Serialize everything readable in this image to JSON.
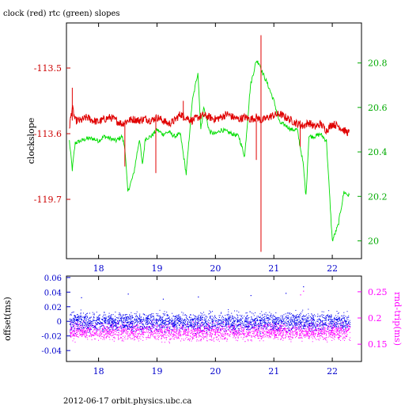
{
  "page_title": "clock (red) rtc (green) slopes",
  "footer": "2012-06-17  orbit.physics.ubc.ca",
  "colors": {
    "red": "#e00000",
    "green": "#00dd00",
    "blue": "#0000ee",
    "magenta": "#ff00ff",
    "axis": "#000000"
  },
  "chart_data": [
    {
      "type": "line",
      "title": "clock (red) rtc (green) slopes",
      "xlabel": "",
      "ylabel": "clockslope",
      "y2label": "",
      "xlim": [
        17.45,
        22.5
      ],
      "ylim": [
        -119.79,
        -113.41
      ],
      "y2lim": [
        19.92,
        20.98
      ],
      "x_ticks": [
        18,
        19,
        20,
        21,
        22
      ],
      "y_ticks": [
        -113.5,
        -113.6,
        -119.7
      ],
      "y2_ticks": [
        20,
        20.2,
        20.4,
        20.6,
        20.8
      ],
      "series": [
        {
          "name": "clock (red)",
          "axis": "left",
          "color": "#e00000",
          "x": [
            17.5,
            17.55,
            17.6,
            17.7,
            17.8,
            17.9,
            18.0,
            18.1,
            18.2,
            18.3,
            18.4,
            18.5,
            18.6,
            18.7,
            18.8,
            18.9,
            19.0,
            19.1,
            19.2,
            19.3,
            19.4,
            19.5,
            19.6,
            19.7,
            19.8,
            19.9,
            20.0,
            20.1,
            20.2,
            20.3,
            20.4,
            20.5,
            20.6,
            20.7,
            20.8,
            20.9,
            21.0,
            21.1,
            21.2,
            21.3,
            21.4,
            21.5,
            21.6,
            21.7,
            21.8,
            21.9,
            22.0,
            22.1,
            22.2,
            22.3
          ],
          "y": [
            -113.59,
            -113.56,
            -113.58,
            -113.58,
            -113.575,
            -113.58,
            -113.582,
            -113.578,
            -113.575,
            -113.58,
            -113.585,
            -113.58,
            -113.578,
            -113.58,
            -113.577,
            -113.58,
            -113.575,
            -113.58,
            -113.585,
            -113.58,
            -113.57,
            -113.575,
            -113.58,
            -113.575,
            -113.572,
            -113.575,
            -113.578,
            -113.575,
            -113.57,
            -113.575,
            -113.578,
            -113.575,
            -113.578,
            -113.575,
            -113.58,
            -113.575,
            -113.572,
            -113.57,
            -113.575,
            -113.58,
            -113.585,
            -113.588,
            -113.583,
            -113.59,
            -113.585,
            -113.595,
            -113.585,
            -113.588,
            -113.595,
            -113.6
          ]
        },
        {
          "name": "rtc (green)",
          "axis": "right",
          "color": "#00dd00",
          "x": [
            17.5,
            17.55,
            17.6,
            17.7,
            17.8,
            17.9,
            18.0,
            18.1,
            18.2,
            18.3,
            18.4,
            18.45,
            18.5,
            18.6,
            18.7,
            18.75,
            18.8,
            18.9,
            19.0,
            19.1,
            19.2,
            19.3,
            19.4,
            19.5,
            19.55,
            19.6,
            19.7,
            19.75,
            19.8,
            19.9,
            20.0,
            20.1,
            20.2,
            20.3,
            20.4,
            20.5,
            20.6,
            20.7,
            20.75,
            20.8,
            20.9,
            21.0,
            21.1,
            21.2,
            21.3,
            21.4,
            21.5,
            21.55,
            21.6,
            21.7,
            21.8,
            21.9,
            22.0,
            22.1,
            22.2,
            22.3
          ],
          "y": [
            20.45,
            20.32,
            20.44,
            20.45,
            20.46,
            20.46,
            20.45,
            20.47,
            20.46,
            20.45,
            20.47,
            20.42,
            20.22,
            20.3,
            20.46,
            20.34,
            20.46,
            20.47,
            20.5,
            20.48,
            20.49,
            20.47,
            20.48,
            20.3,
            20.46,
            20.62,
            20.76,
            20.5,
            20.6,
            20.49,
            20.48,
            20.5,
            20.49,
            20.48,
            20.47,
            20.38,
            20.7,
            20.81,
            20.8,
            20.76,
            20.7,
            20.63,
            20.53,
            20.52,
            20.5,
            20.5,
            20.35,
            20.2,
            20.47,
            20.47,
            20.48,
            20.45,
            20.0,
            20.07,
            20.22,
            20.2
          ]
        }
      ]
    },
    {
      "type": "scatter",
      "title": "",
      "xlabel": "",
      "ylabel": "offset(ms)",
      "y2label": "rnd-trip(ms)",
      "xlim": [
        17.45,
        22.5
      ],
      "ylim": [
        -0.055,
        0.062
      ],
      "y2lim": [
        0.117,
        0.28
      ],
      "x_ticks": [
        18,
        19,
        20,
        21,
        22
      ],
      "y_ticks": [
        0.06,
        0.04,
        0.02,
        0,
        -0.02,
        -0.04
      ],
      "y2_ticks": [
        0.25,
        0.2,
        0.15
      ],
      "series": [
        {
          "name": "offset",
          "axis": "left",
          "color": "#0000ee",
          "x_range": [
            17.5,
            22.3
          ],
          "band_center": 0.0,
          "band_half_width": 0.012,
          "outliers": [
            [
              17.7,
              0.033
            ],
            [
              18.5,
              0.038
            ],
            [
              19.1,
              0.031
            ],
            [
              19.7,
              0.034
            ],
            [
              20.6,
              0.036
            ],
            [
              21.2,
              0.039
            ],
            [
              21.5,
              0.048
            ]
          ]
        },
        {
          "name": "rnd-trip",
          "axis": "right",
          "color": "#ff00ff",
          "x_range": [
            17.5,
            22.3
          ],
          "band_center": 0.175,
          "band_half_width": 0.017,
          "outliers": [
            [
              21.45,
              0.245
            ],
            [
              21.5,
              0.252
            ]
          ]
        }
      ]
    }
  ]
}
